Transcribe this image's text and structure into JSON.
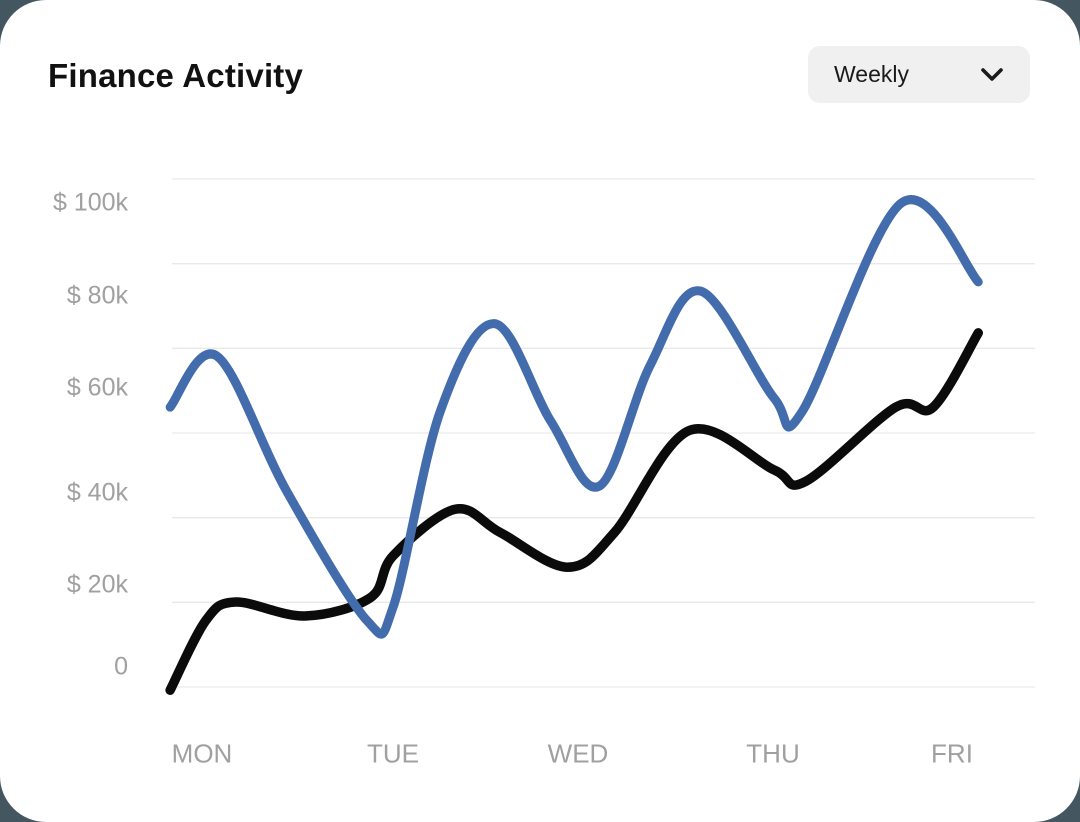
{
  "header": {
    "title": "Finance Activity",
    "period_selector": {
      "value": "Weekly",
      "icon": "chevron-down-icon"
    }
  },
  "theme": {
    "page_background": "#44565f",
    "card_background": "#ffffff",
    "dropdown_background": "#f0f0f0",
    "axis_label_color": "#a0a0a0",
    "gridline_color": "#e9e9e9",
    "blue_series_color": "#426cac",
    "black_series_color": "#0b0b0b"
  },
  "chart_data": {
    "type": "line",
    "title": "Finance Activity",
    "categories": [
      "MON",
      "TUE",
      "WED",
      "THU",
      "FRI"
    ],
    "y_tick_labels": [
      "$ 100k",
      "$ 80k",
      "$ 60k",
      "$ 40k",
      "$ 20k",
      "0"
    ],
    "y_unit": "USD thousands",
    "ylim": [
      0,
      100
    ],
    "grid": true,
    "legend": false,
    "series": [
      {
        "name": "black-series",
        "color": "#0b0b0b",
        "values_by_day_k": [
          10,
          24,
          22,
          42,
          62
        ],
        "samples_day_value_k": [
          [
            -0.17,
            -5
          ],
          [
            0.02,
            10
          ],
          [
            0.18,
            14
          ],
          [
            0.55,
            11
          ],
          [
            0.9,
            15
          ],
          [
            1.02,
            24
          ],
          [
            1.35,
            34
          ],
          [
            1.59,
            29
          ],
          [
            1.95,
            21.5
          ],
          [
            2.2,
            29
          ],
          [
            2.6,
            51
          ],
          [
            3.05,
            42.5
          ],
          [
            3.22,
            40
          ],
          [
            3.7,
            56
          ],
          [
            3.9,
            56
          ],
          [
            4.14,
            72
          ]
        ]
      },
      {
        "name": "blue-series",
        "color": "#426cac",
        "values_by_day_k": [
          66,
          13,
          42,
          58,
          95
        ],
        "samples_day_value_k": [
          [
            -0.17,
            56
          ],
          [
            0.08,
            67
          ],
          [
            0.45,
            38
          ],
          [
            0.88,
            10
          ],
          [
            1.02,
            13
          ],
          [
            1.27,
            55
          ],
          [
            1.56,
            74
          ],
          [
            1.86,
            53
          ],
          [
            2.12,
            39
          ],
          [
            2.39,
            65
          ],
          [
            2.66,
            81
          ],
          [
            3.05,
            58
          ],
          [
            3.2,
            55
          ],
          [
            3.73,
            100
          ],
          [
            4.14,
            83
          ]
        ]
      }
    ]
  }
}
